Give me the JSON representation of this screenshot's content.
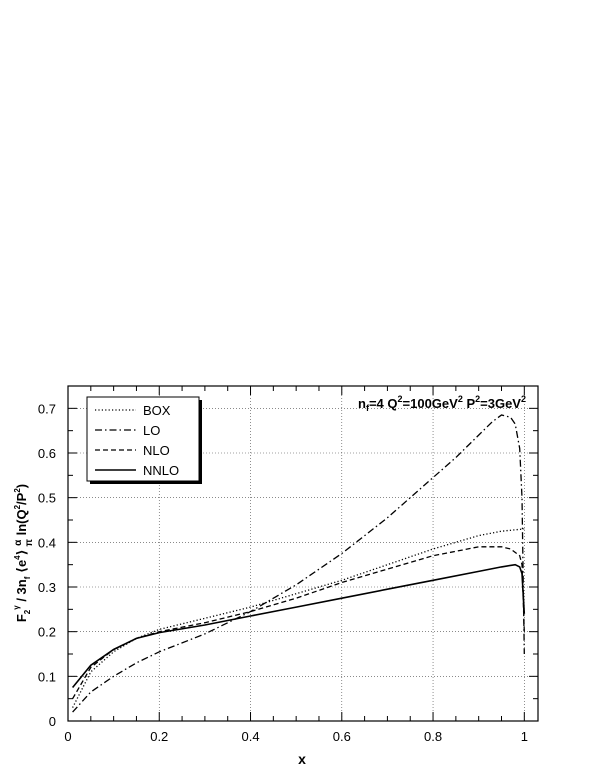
{
  "chart_data": {
    "type": "line",
    "annotation": "n_f=4 Q²=100GeV² P²=3GeV²",
    "xlabel": "x",
    "ylabel": "F₂^γ / 3n_f ⟨e⁴⟩ (α/π) ln(Q²/P²)",
    "xlim": [
      0,
      1.03
    ],
    "ylim": [
      0,
      0.75
    ],
    "grid": true,
    "legend_position": "top-left",
    "x_ticks": [
      0,
      0.2,
      0.4,
      0.6,
      0.8,
      1
    ],
    "x_tick_labels": [
      "0",
      "0.2",
      "0.4",
      "0.6",
      "0.8",
      "1"
    ],
    "y_ticks": [
      0,
      0.1,
      0.2,
      0.3,
      0.4,
      0.5,
      0.6,
      0.7
    ],
    "y_tick_labels": [
      "0",
      "0.1",
      "0.2",
      "0.3",
      "0.4",
      "0.5",
      "0.6",
      "0.7"
    ],
    "series": [
      {
        "name": "BOX",
        "style": "dotted",
        "x": [
          0.01,
          0.05,
          0.1,
          0.15,
          0.2,
          0.3,
          0.4,
          0.5,
          0.6,
          0.7,
          0.8,
          0.9,
          0.95,
          1.0
        ],
        "y": [
          0.03,
          0.11,
          0.155,
          0.185,
          0.205,
          0.23,
          0.255,
          0.285,
          0.315,
          0.35,
          0.385,
          0.415,
          0.425,
          0.43
        ]
      },
      {
        "name": "LO",
        "style": "dashdot",
        "x": [
          0.01,
          0.05,
          0.1,
          0.15,
          0.2,
          0.3,
          0.4,
          0.5,
          0.6,
          0.7,
          0.8,
          0.85,
          0.9,
          0.93,
          0.95,
          0.97,
          0.98,
          0.99,
          0.995,
          1.0
        ],
        "y": [
          0.02,
          0.065,
          0.1,
          0.13,
          0.155,
          0.195,
          0.245,
          0.305,
          0.375,
          0.455,
          0.545,
          0.59,
          0.64,
          0.67,
          0.685,
          0.68,
          0.665,
          0.61,
          0.5,
          0.15
        ]
      },
      {
        "name": "NLO",
        "style": "dashed",
        "x": [
          0.01,
          0.05,
          0.1,
          0.15,
          0.2,
          0.3,
          0.4,
          0.5,
          0.6,
          0.7,
          0.8,
          0.85,
          0.9,
          0.95,
          0.97,
          0.99,
          0.995,
          1.0
        ],
        "y": [
          0.05,
          0.12,
          0.16,
          0.185,
          0.2,
          0.22,
          0.245,
          0.275,
          0.31,
          0.34,
          0.37,
          0.38,
          0.39,
          0.39,
          0.385,
          0.37,
          0.35,
          0.2
        ]
      },
      {
        "name": "NNLO",
        "style": "solid",
        "x": [
          0.01,
          0.05,
          0.1,
          0.15,
          0.2,
          0.3,
          0.4,
          0.5,
          0.6,
          0.7,
          0.8,
          0.9,
          0.95,
          0.98,
          0.99,
          0.995,
          1.0
        ],
        "y": [
          0.075,
          0.125,
          0.16,
          0.185,
          0.198,
          0.215,
          0.235,
          0.255,
          0.275,
          0.295,
          0.315,
          0.335,
          0.345,
          0.35,
          0.345,
          0.33,
          0.24
        ]
      }
    ]
  }
}
